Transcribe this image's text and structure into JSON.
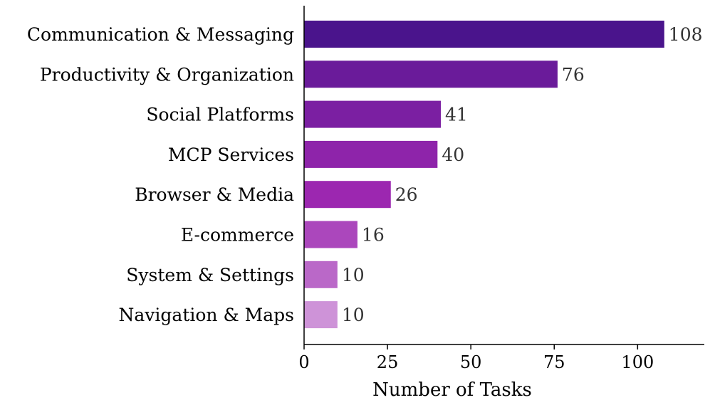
{
  "chart_data": {
    "type": "bar",
    "orientation": "horizontal",
    "categories": [
      "Communication & Messaging",
      "Productivity & Organization",
      "Social Platforms",
      "MCP Services",
      "Browser & Media",
      "E-commerce",
      "System & Settings",
      "Navigation & Maps"
    ],
    "values": [
      108,
      76,
      41,
      40,
      26,
      16,
      10,
      10
    ],
    "value_labels": [
      "108",
      "76",
      "41",
      "40",
      "26",
      "16",
      "10",
      "10"
    ],
    "colors": [
      "#4a148c",
      "#6a1b9a",
      "#7b1fa2",
      "#8e24aa",
      "#9c27b0",
      "#ab47bc",
      "#ba68c8",
      "#ce93d8"
    ],
    "title": "",
    "xlabel": "Number of Tasks",
    "ylabel": "",
    "xlim": [
      0,
      120
    ],
    "xticks": [
      0,
      25,
      50,
      75,
      100
    ],
    "grid": false,
    "legend": "none"
  }
}
